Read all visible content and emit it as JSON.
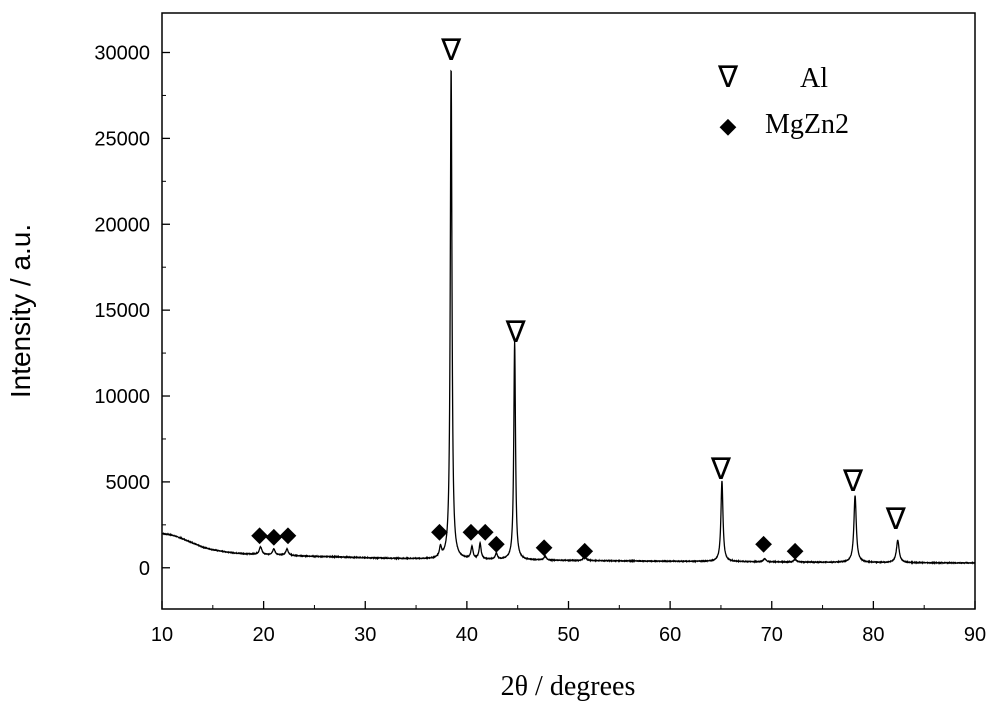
{
  "chart_data": {
    "type": "line",
    "xlabel": "2θ / degrees",
    "ylabel": "Intensity / a.u.",
    "xlim": [
      10,
      90
    ],
    "ylim": [
      -2400,
      32300
    ],
    "xticks": [
      10,
      20,
      30,
      40,
      50,
      60,
      70,
      80,
      90
    ],
    "yticks": [
      0,
      5000,
      10000,
      15000,
      20000,
      25000,
      30000
    ],
    "grid": false,
    "line_color": "#000000",
    "baseline": [
      [
        10,
        2000
      ],
      [
        11,
        1900
      ],
      [
        12,
        1700
      ],
      [
        13,
        1450
      ],
      [
        14,
        1200
      ],
      [
        15,
        1050
      ],
      [
        16,
        950
      ],
      [
        17,
        870
      ],
      [
        18,
        820
      ],
      [
        19,
        790
      ],
      [
        20,
        760
      ],
      [
        22,
        720
      ],
      [
        24,
        680
      ],
      [
        26,
        650
      ],
      [
        28,
        620
      ],
      [
        30,
        580
      ],
      [
        32,
        555
      ],
      [
        34,
        530
      ],
      [
        36,
        510
      ],
      [
        38,
        495
      ],
      [
        40,
        480
      ],
      [
        45,
        450
      ],
      [
        50,
        420
      ],
      [
        55,
        400
      ],
      [
        60,
        380
      ],
      [
        65,
        360
      ],
      [
        70,
        340
      ],
      [
        75,
        320
      ],
      [
        80,
        305
      ],
      [
        85,
        290
      ],
      [
        90,
        280
      ]
    ],
    "peaks": [
      {
        "x": 19.7,
        "height": 450,
        "width": 0.15
      },
      {
        "x": 21.0,
        "height": 350,
        "width": 0.15
      },
      {
        "x": 22.3,
        "height": 380,
        "width": 0.15
      },
      {
        "x": 37.4,
        "height": 600,
        "width": 0.12
      },
      {
        "x": 38.45,
        "height": 28700,
        "width": 0.1
      },
      {
        "x": 40.5,
        "height": 700,
        "width": 0.12
      },
      {
        "x": 41.3,
        "height": 900,
        "width": 0.12
      },
      {
        "x": 42.9,
        "height": 350,
        "width": 0.12
      },
      {
        "x": 44.7,
        "height": 12700,
        "width": 0.1
      },
      {
        "x": 47.7,
        "height": 220,
        "width": 0.15
      },
      {
        "x": 51.6,
        "height": 250,
        "width": 0.15
      },
      {
        "x": 65.1,
        "height": 4700,
        "width": 0.12
      },
      {
        "x": 69.3,
        "height": 180,
        "width": 0.15
      },
      {
        "x": 72.3,
        "height": 160,
        "width": 0.15
      },
      {
        "x": 78.2,
        "height": 3900,
        "width": 0.14
      },
      {
        "x": 82.4,
        "height": 1300,
        "width": 0.16
      }
    ],
    "markers": [
      {
        "phase": "Al",
        "symbol": "∇",
        "x": 38.45,
        "y": 30200
      },
      {
        "phase": "Al",
        "symbol": "∇",
        "x": 44.8,
        "y": 13800
      },
      {
        "phase": "Al",
        "symbol": "∇",
        "x": 65.0,
        "y": 5800
      },
      {
        "phase": "Al",
        "symbol": "∇",
        "x": 78.0,
        "y": 5100
      },
      {
        "phase": "Al",
        "symbol": "∇",
        "x": 82.2,
        "y": 2900
      },
      {
        "phase": "MgZn2",
        "symbol": "◆",
        "x": 19.6,
        "y": 2000
      },
      {
        "phase": "MgZn2",
        "symbol": "◆",
        "x": 21.0,
        "y": 1900
      },
      {
        "phase": "MgZn2",
        "symbol": "◆",
        "x": 22.4,
        "y": 2000
      },
      {
        "phase": "MgZn2",
        "symbol": "◆",
        "x": 37.3,
        "y": 2200
      },
      {
        "phase": "MgZn2",
        "symbol": "◆",
        "x": 40.4,
        "y": 2200
      },
      {
        "phase": "MgZn2",
        "symbol": "◆",
        "x": 41.8,
        "y": 2200
      },
      {
        "phase": "MgZn2",
        "symbol": "◆",
        "x": 42.9,
        "y": 1500
      },
      {
        "phase": "MgZn2",
        "symbol": "◆",
        "x": 47.6,
        "y": 1300
      },
      {
        "phase": "MgZn2",
        "symbol": "◆",
        "x": 51.6,
        "y": 1100
      },
      {
        "phase": "MgZn2",
        "symbol": "◆",
        "x": 69.2,
        "y": 1500
      },
      {
        "phase": "MgZn2",
        "symbol": "◆",
        "x": 72.3,
        "y": 1100
      }
    ],
    "legend": {
      "position": "top-right",
      "entries": [
        {
          "symbol": "∇",
          "label": "Al"
        },
        {
          "symbol": "◆",
          "label": "MgZn2"
        }
      ]
    }
  }
}
